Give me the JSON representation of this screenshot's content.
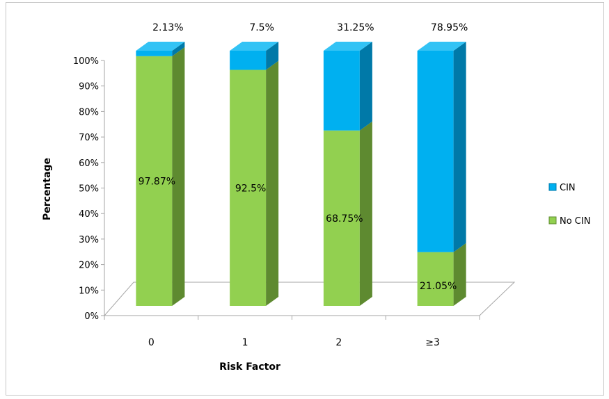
{
  "chart_data": {
    "type": "bar",
    "stacked": true,
    "three_d": true,
    "percent": true,
    "categories": [
      "0",
      "1",
      "2",
      "≥3"
    ],
    "series": [
      {
        "name": "No CIN",
        "values": [
          97.87,
          92.5,
          68.75,
          21.05
        ],
        "labels": [
          "97.87%",
          "92.5%",
          "68.75%",
          "21.05%"
        ],
        "color": "#92d050",
        "side_color": "#5e8a30",
        "top_color": "#a9dc6c"
      },
      {
        "name": "CIN",
        "values": [
          2.13,
          7.5,
          31.25,
          78.95
        ],
        "labels": [
          "2.13%",
          "7.5%",
          "31.25%",
          "78.95%"
        ],
        "color": "#00b0f0",
        "side_color": "#0079a8",
        "top_color": "#33c3f5"
      }
    ],
    "xlabel": "Risk Factor",
    "ylabel": "Percentage",
    "ylim": [
      0,
      100
    ],
    "yticks": [
      "0%",
      "10%",
      "20%",
      "30%",
      "40%",
      "50%",
      "60%",
      "70%",
      "80%",
      "90%",
      "100%"
    ],
    "legend": {
      "position": "right",
      "order": [
        "CIN",
        "No CIN"
      ]
    },
    "grid": false
  }
}
